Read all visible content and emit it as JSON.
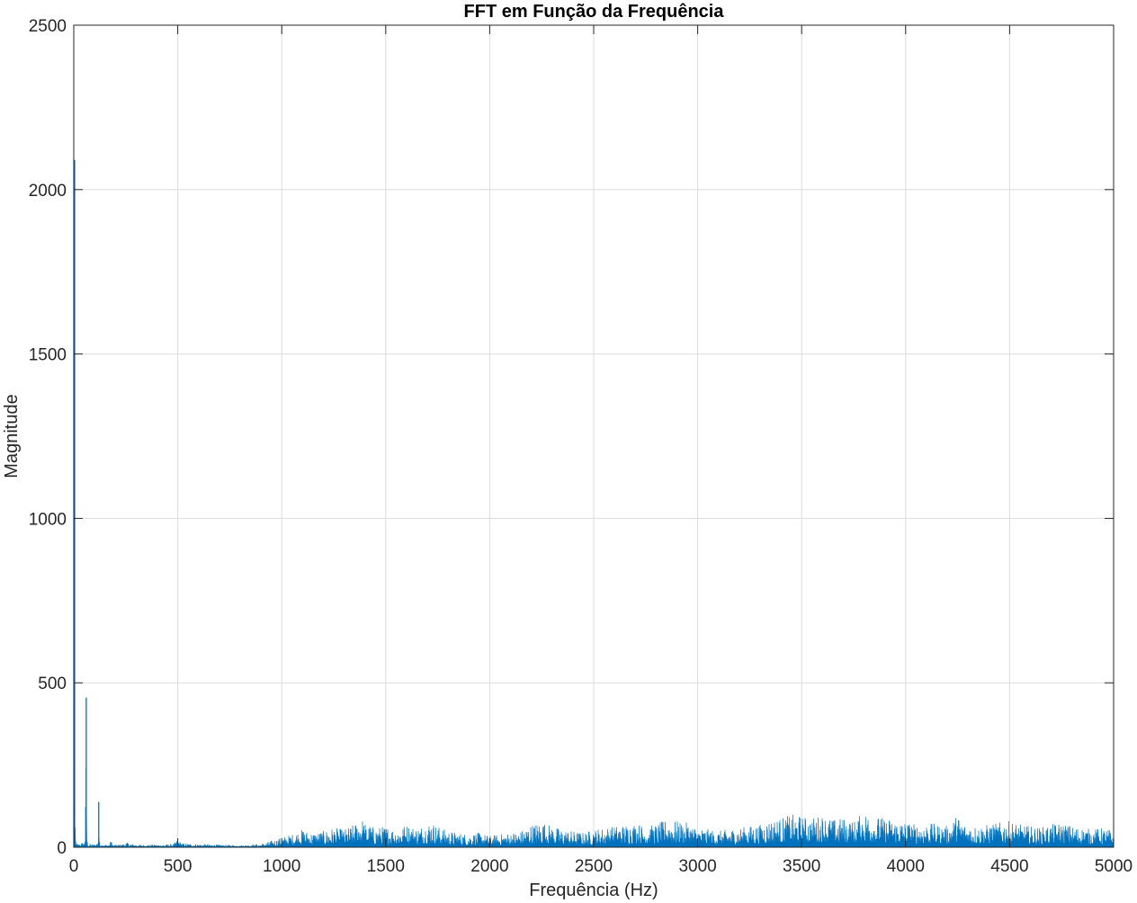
{
  "chart_data": {
    "type": "line",
    "title": "FFT em Função da Frequência",
    "xlabel": "Frequência (Hz)",
    "ylabel": "Magnitude",
    "xlim": [
      0,
      5000
    ],
    "ylim": [
      0,
      2500
    ],
    "xticks": [
      0,
      500,
      1000,
      1500,
      2000,
      2500,
      3000,
      3500,
      4000,
      4500,
      5000
    ],
    "yticks": [
      0,
      500,
      1000,
      1500,
      2000,
      2500
    ],
    "xtick_labels": [
      "0",
      "500",
      "1000",
      "1500",
      "2000",
      "2500",
      "3000",
      "3500",
      "4000",
      "4500",
      "5000"
    ],
    "ytick_labels": [
      "0",
      "500",
      "1000",
      "1500",
      "2000",
      "2500"
    ],
    "grid": true,
    "line_color": "#0072BD",
    "series": [
      {
        "x": [
          0,
          2,
          5,
          10,
          20,
          30,
          40,
          50,
          55,
          58,
          60,
          62,
          65,
          70,
          80,
          100,
          110,
          118,
          120,
          122,
          130,
          150,
          170,
          178,
          180,
          182,
          190,
          200,
          240,
          250,
          300,
          400,
          480,
          500,
          520,
          600,
          700,
          800,
          900,
          950,
          1000,
          1050,
          1100,
          1150,
          1200,
          1250,
          1300,
          1350,
          1380,
          1400,
          1450,
          1500,
          1550,
          1600,
          1650,
          1700,
          1720,
          1750,
          1800,
          1850,
          1900,
          1950,
          2000,
          2050,
          2100,
          2150,
          2200,
          2250,
          2300,
          2350,
          2400,
          2450,
          2500,
          2550,
          2600,
          2650,
          2700,
          2750,
          2800,
          2850,
          2900,
          2950,
          3000,
          3050,
          3100,
          3150,
          3200,
          3250,
          3300,
          3350,
          3400,
          3450,
          3500,
          3550,
          3600,
          3650,
          3700,
          3750,
          3800,
          3850,
          3900,
          3950,
          4000,
          4050,
          4100,
          4150,
          4200,
          4250,
          4280,
          4300,
          4350,
          4400,
          4450,
          4500,
          4550,
          4600,
          4650,
          4700,
          4750,
          4800,
          4850,
          4900,
          4950,
          5000
        ],
        "y": [
          2090,
          450,
          80,
          15,
          10,
          12,
          15,
          18,
          60,
          250,
          455,
          60,
          20,
          12,
          10,
          10,
          12,
          30,
          138,
          20,
          10,
          8,
          10,
          20,
          40,
          12,
          8,
          8,
          10,
          15,
          8,
          8,
          10,
          25,
          12,
          10,
          8,
          6,
          10,
          20,
          30,
          40,
          55,
          45,
          50,
          60,
          55,
          70,
          95,
          75,
          60,
          65,
          55,
          70,
          60,
          75,
          80,
          65,
          50,
          45,
          40,
          45,
          35,
          40,
          45,
          50,
          70,
          80,
          65,
          55,
          50,
          45,
          55,
          60,
          65,
          70,
          75,
          65,
          70,
          85,
          80,
          75,
          60,
          55,
          50,
          55,
          60,
          65,
          70,
          85,
          90,
          100,
          95,
          90,
          100,
          85,
          90,
          80,
          110,
          95,
          90,
          85,
          80,
          70,
          75,
          70,
          65,
          100,
          75,
          70,
          65,
          70,
          75,
          80,
          70,
          65,
          60,
          70,
          75,
          65,
          60,
          55,
          60,
          50
        ]
      }
    ]
  }
}
